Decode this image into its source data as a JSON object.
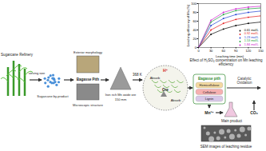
{
  "diagram": {
    "source": {
      "label": "Sugarcane Refinery"
    },
    "byproduct": {
      "label": "Sugarcane by-product",
      "step": "sieving size"
    },
    "pith": {
      "label": "Bagasse Pith",
      "top": "Exterior morphology",
      "bottom": "Microscopic structure"
    },
    "ore": {
      "label": "Iron rich Mn oxide ore",
      "size": "150 mm"
    },
    "reaction": {
      "temperature": "368 K",
      "ion": "H⁺",
      "absorb": [
        "Absorb",
        "Absorb"
      ],
      "ore": "Ore"
    },
    "components": {
      "label": "Bagasse pith",
      "parts": [
        "Hemicellulose",
        "Cellulose",
        "Lignin"
      ]
    },
    "oxidation": "Catalytic Oxidation",
    "product": {
      "ion": "Mn²⁺",
      "label": "Main product",
      "gas": "CO₂"
    },
    "residue": "SEM images of leaching residue"
  },
  "chart_data": {
    "type": "line",
    "title": "Effect of H₂SO₄ concentration on Mn leaching efficiency",
    "x_label": "Leaching time (min)",
    "y_label": "Leaching efficiency of Mn (%)",
    "x": [
      0,
      30,
      60,
      90,
      120,
      150
    ],
    "series": [
      {
        "name": "0.61 mol/L",
        "color": "#000000",
        "marker": "circle",
        "values": [
          0,
          30,
          42,
          50,
          55,
          58
        ]
      },
      {
        "name": "0.92 mol/L",
        "color": "#e41a1c",
        "marker": "circle",
        "values": [
          0,
          40,
          55,
          64,
          69,
          72
        ]
      },
      {
        "name": "1.23 mol/L",
        "color": "#1f3fd1",
        "marker": "circle",
        "values": [
          0,
          50,
          66,
          75,
          80,
          83
        ]
      },
      {
        "name": "1.53 mol/L",
        "color": "#1a9e3a",
        "marker": "circle",
        "values": [
          0,
          58,
          75,
          84,
          88,
          90
        ]
      },
      {
        "name": "1.84 mol/L",
        "color": "#d01bd0",
        "marker": "circle",
        "values": [
          0,
          62,
          80,
          88,
          92,
          94
        ]
      }
    ],
    "xlim": [
      0,
      150
    ],
    "xticks": [
      0,
      30,
      60,
      90,
      120,
      150
    ],
    "ylim": [
      0,
      100
    ],
    "yticks": [
      0,
      20,
      40,
      60,
      80,
      100
    ],
    "legend": "bottom-right"
  }
}
